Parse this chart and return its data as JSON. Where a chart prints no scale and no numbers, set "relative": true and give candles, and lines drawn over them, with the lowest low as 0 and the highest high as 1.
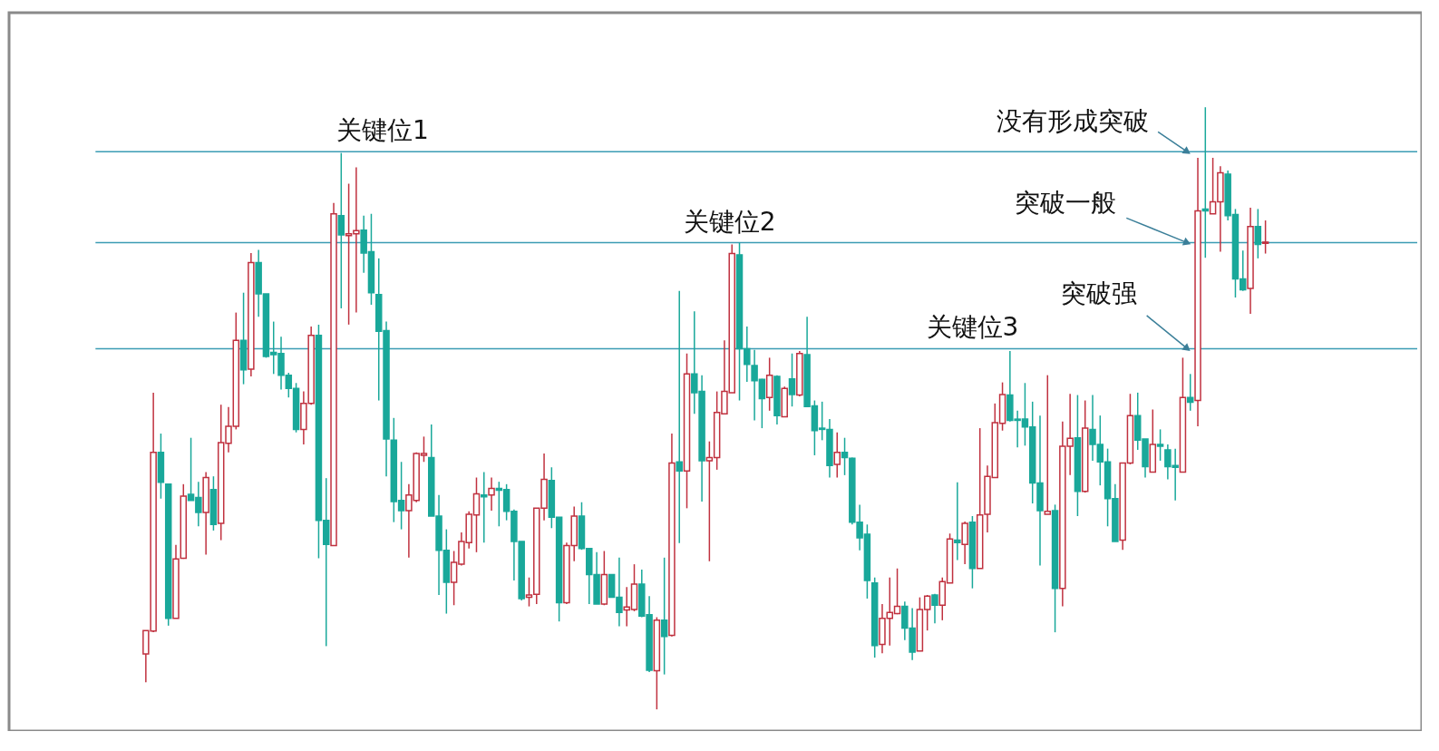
{
  "chart_data": {
    "type": "candlestick",
    "relative": true,
    "categories": [
      null,
      null,
      null,
      null,
      null,
      null,
      null,
      null,
      null,
      null,
      null,
      null,
      null,
      null,
      null,
      null,
      null,
      null,
      null,
      null,
      null,
      null,
      null,
      null,
      null,
      null,
      null,
      null,
      null,
      null,
      null,
      null,
      null,
      null,
      null,
      null,
      null,
      null,
      null,
      null,
      null,
      null,
      null,
      null,
      null,
      null,
      null,
      null,
      null,
      null,
      null,
      null,
      null,
      null,
      null,
      null,
      null,
      null,
      null,
      null,
      null,
      null,
      null,
      null,
      null,
      null,
      null,
      null,
      null,
      null,
      null,
      null,
      null,
      null,
      null,
      null,
      null,
      null,
      null,
      null,
      null,
      null,
      null,
      null,
      null,
      null,
      null,
      null,
      null,
      null,
      null,
      null,
      null,
      null,
      null,
      null,
      null,
      null,
      null,
      null,
      null,
      null,
      null,
      null,
      null,
      null,
      null,
      null,
      null,
      null,
      null,
      null,
      null,
      null,
      null,
      null,
      null,
      null,
      null,
      null,
      null,
      null,
      null,
      null,
      null,
      null,
      null,
      null,
      null,
      null,
      null,
      null,
      null,
      null,
      null,
      null,
      null,
      null,
      null,
      null,
      null,
      null,
      null,
      null,
      null,
      null,
      null,
      null,
      null,
      null
    ],
    "ohlc": [
      [
        0.092,
        0.131,
        0.045,
        0.131
      ],
      [
        0.13,
        0.526,
        0.128,
        0.427
      ],
      [
        0.427,
        0.458,
        0.35,
        0.377
      ],
      [
        0.374,
        0.374,
        0.139,
        0.151
      ],
      [
        0.151,
        0.273,
        0.151,
        0.25
      ],
      [
        0.251,
        0.374,
        0.25,
        0.354
      ],
      [
        0.357,
        0.451,
        0.347,
        0.347
      ],
      [
        0.352,
        0.378,
        0.304,
        0.327
      ],
      [
        0.327,
        0.394,
        0.257,
        0.385
      ],
      [
        0.365,
        0.387,
        0.297,
        0.307
      ],
      [
        0.309,
        0.506,
        0.281,
        0.443
      ],
      [
        0.442,
        0.502,
        0.427,
        0.47
      ],
      [
        0.47,
        0.659,
        0.465,
        0.613
      ],
      [
        0.613,
        0.692,
        0.54,
        0.564
      ],
      [
        0.565,
        0.758,
        0.553,
        0.742
      ],
      [
        0.742,
        0.763,
        0.652,
        0.69
      ],
      [
        0.69,
        0.69,
        0.584,
        0.586
      ],
      [
        0.593,
        0.644,
        0.557,
        0.589
      ],
      [
        0.591,
        0.619,
        0.531,
        0.555
      ],
      [
        0.555,
        0.559,
        0.518,
        0.533
      ],
      [
        0.533,
        0.542,
        0.46,
        0.465
      ],
      [
        0.465,
        0.528,
        0.44,
        0.508
      ],
      [
        0.508,
        0.636,
        0.506,
        0.621
      ],
      [
        0.621,
        0.639,
        0.251,
        0.314
      ],
      [
        0.314,
        0.384,
        0.105,
        0.274
      ],
      [
        0.272,
        0.841,
        0.272,
        0.823
      ],
      [
        0.82,
        0.924,
        0.666,
        0.788
      ],
      [
        0.787,
        0.873,
        0.639,
        0.79
      ],
      [
        0.79,
        0.9,
        0.659,
        0.795
      ],
      [
        0.796,
        0.82,
        0.725,
        0.758
      ],
      [
        0.76,
        0.823,
        0.672,
        0.692
      ],
      [
        0.689,
        0.749,
        0.513,
        0.628
      ],
      [
        0.629,
        0.644,
        0.387,
        0.449
      ],
      [
        0.447,
        0.484,
        0.311,
        0.345
      ],
      [
        0.347,
        0.411,
        0.299,
        0.33
      ],
      [
        0.33,
        0.374,
        0.252,
        0.356
      ],
      [
        0.347,
        0.427,
        0.344,
        0.425
      ],
      [
        0.422,
        0.453,
        0.411,
        0.425
      ],
      [
        0.418,
        0.473,
        0.321,
        0.321
      ],
      [
        0.321,
        0.356,
        0.19,
        0.264
      ],
      [
        0.264,
        0.299,
        0.159,
        0.211
      ],
      [
        0.211,
        0.263,
        0.173,
        0.244
      ],
      [
        0.241,
        0.294,
        0.239,
        0.279
      ],
      [
        0.277,
        0.329,
        0.267,
        0.324
      ],
      [
        0.323,
        0.385,
        0.261,
        0.358
      ],
      [
        0.356,
        0.394,
        0.277,
        0.353
      ],
      [
        0.356,
        0.385,
        0.33,
        0.367
      ],
      [
        0.367,
        0.378,
        0.304,
        0.364
      ],
      [
        0.365,
        0.374,
        0.314,
        0.329
      ],
      [
        0.329,
        0.332,
        0.214,
        0.279
      ],
      [
        0.279,
        0.279,
        0.181,
        0.184
      ],
      [
        0.186,
        0.219,
        0.171,
        0.19
      ],
      [
        0.191,
        0.334,
        0.175,
        0.334
      ],
      [
        0.334,
        0.425,
        0.314,
        0.382
      ],
      [
        0.38,
        0.402,
        0.301,
        0.319
      ],
      [
        0.319,
        0.319,
        0.146,
        0.177
      ],
      [
        0.177,
        0.277,
        0.175,
        0.272
      ],
      [
        0.272,
        0.337,
        0.246,
        0.321
      ],
      [
        0.321,
        0.344,
        0.265,
        0.267
      ],
      [
        0.267,
        0.267,
        0.175,
        0.224
      ],
      [
        0.224,
        0.261,
        0.175,
        0.175
      ],
      [
        0.175,
        0.263,
        0.173,
        0.224
      ],
      [
        0.224,
        0.224,
        0.186,
        0.186
      ],
      [
        0.186,
        0.252,
        0.138,
        0.161
      ],
      [
        0.165,
        0.203,
        0.138,
        0.17
      ],
      [
        0.166,
        0.241,
        0.163,
        0.208
      ],
      [
        0.208,
        0.232,
        0.153,
        0.155
      ],
      [
        0.157,
        0.188,
        0.062,
        0.065
      ],
      [
        0.064,
        0.153,
        0,
        0.148
      ],
      [
        0.148,
        0.252,
        0.058,
        0.121
      ],
      [
        0.123,
        0.458,
        0.121,
        0.409
      ],
      [
        0.411,
        0.695,
        0.276,
        0.396
      ],
      [
        0.396,
        0.591,
        0.334,
        0.557
      ],
      [
        0.557,
        0.661,
        0.491,
        0.526
      ],
      [
        0.528,
        0.555,
        0.345,
        0.413
      ],
      [
        0.413,
        0.445,
        0.246,
        0.418
      ],
      [
        0.418,
        0.528,
        0.398,
        0.493
      ],
      [
        0.491,
        0.613,
        0.49,
        0.528
      ],
      [
        0.526,
        0.772,
        0.526,
        0.757
      ],
      [
        0.755,
        0.775,
        0.513,
        0.599
      ],
      [
        0.599,
        0.636,
        0.544,
        0.573
      ],
      [
        0.571,
        0.597,
        0.48,
        0.546
      ],
      [
        0.548,
        0.549,
        0.467,
        0.516
      ],
      [
        0.518,
        0.584,
        0.496,
        0.555
      ],
      [
        0.553,
        0.555,
        0.473,
        0.488
      ],
      [
        0.486,
        0.536,
        0.486,
        0.533
      ],
      [
        0.549,
        0.591,
        0.503,
        0.523
      ],
      [
        0.522,
        0.595,
        0.52,
        0.591
      ],
      [
        0.589,
        0.652,
        0.502,
        0.503
      ],
      [
        0.504,
        0.513,
        0.422,
        0.463
      ],
      [
        0.467,
        0.511,
        0.447,
        0.465
      ],
      [
        0.465,
        0.482,
        0.385,
        0.405
      ],
      [
        0.407,
        0.46,
        0.385,
        0.427
      ],
      [
        0.427,
        0.451,
        0.389,
        0.418
      ],
      [
        0.417,
        0.418,
        0.307,
        0.311
      ],
      [
        0.311,
        0.34,
        0.264,
        0.285
      ],
      [
        0.291,
        0.307,
        0.184,
        0.214
      ],
      [
        0.21,
        0.219,
        0.086,
        0.106
      ],
      [
        0.108,
        0.175,
        0.093,
        0.151
      ],
      [
        0.151,
        0.219,
        0.106,
        0.161
      ],
      [
        0.159,
        0.234,
        0.158,
        0.171
      ],
      [
        0.171,
        0.179,
        0.115,
        0.135
      ],
      [
        0.135,
        0.168,
        0.082,
        0.095
      ],
      [
        0.097,
        0.186,
        0.097,
        0.166
      ],
      [
        0.166,
        0.19,
        0.131,
        0.188
      ],
      [
        0.19,
        0.192,
        0.143,
        0.173
      ],
      [
        0.173,
        0.219,
        0.148,
        0.212
      ],
      [
        0.21,
        0.292,
        0.21,
        0.283
      ],
      [
        0.281,
        0.377,
        0.248,
        0.277
      ],
      [
        0.274,
        0.312,
        0.241,
        0.309
      ],
      [
        0.311,
        0.321,
        0.201,
        0.234
      ],
      [
        0.234,
        0.467,
        0.234,
        0.323
      ],
      [
        0.324,
        0.405,
        0.294,
        0.387
      ],
      [
        0.385,
        0.508,
        0.385,
        0.476
      ],
      [
        0.475,
        0.543,
        0.463,
        0.523
      ],
      [
        0.522,
        0.595,
        0.478,
        0.48
      ],
      [
        0.482,
        0.496,
        0.435,
        0.48
      ],
      [
        0.482,
        0.542,
        0.438,
        0.469
      ],
      [
        0.469,
        0.511,
        0.342,
        0.376
      ],
      [
        0.376,
        0.488,
        0.239,
        0.33
      ],
      [
        0.324,
        0.555,
        0.324,
        0.329
      ],
      [
        0.33,
        0.34,
        0.128,
        0.201
      ],
      [
        0.201,
        0.478,
        0.171,
        0.437
      ],
      [
        0.437,
        0.524,
        0.389,
        0.45
      ],
      [
        0.451,
        0.522,
        0.321,
        0.362
      ],
      [
        0.362,
        0.513,
        0.36,
        0.467
      ],
      [
        0.465,
        0.522,
        0.413,
        0.44
      ],
      [
        0.44,
        0.488,
        0.372,
        0.411
      ],
      [
        0.411,
        0.433,
        0.304,
        0.35
      ],
      [
        0.35,
        0.374,
        0.279,
        0.279
      ],
      [
        0.281,
        0.409,
        0.265,
        0.409
      ],
      [
        0.409,
        0.524,
        0.407,
        0.488
      ],
      [
        0.488,
        0.526,
        0.431,
        0.447
      ],
      [
        0.449,
        0.449,
        0.385,
        0.403
      ],
      [
        0.394,
        0.498,
        0.394,
        0.44
      ],
      [
        0.44,
        0.465,
        0.413,
        0.437
      ],
      [
        0.431,
        0.44,
        0.382,
        0.403
      ],
      [
        0.405,
        0.433,
        0.347,
        0.402
      ],
      [
        0.394,
        0.584,
        0.394,
        0.518
      ],
      [
        0.518,
        0.557,
        0.496,
        0.51
      ],
      [
        0.513,
        0.916,
        0.47,
        0.828
      ],
      [
        0.831,
        1,
        0.75,
        0.828
      ],
      [
        0.823,
        0.916,
        0.823,
        0.843
      ],
      [
        0.843,
        0.902,
        0.76,
        0.891
      ],
      [
        0.889,
        0.895,
        0.812,
        0.82
      ],
      [
        0.822,
        0.831,
        0.684,
        0.715
      ],
      [
        0.715,
        0.762,
        0.695,
        0.697
      ],
      [
        0.699,
        0.833,
        0.657,
        0.802
      ],
      [
        0.802,
        0.831,
        0.749,
        0.772
      ],
      [
        0.774,
        0.812,
        0.757,
        0.776
      ]
    ],
    "colors": [
      "#c0313f",
      "#c0313f",
      "#19a89a",
      "#19a89a",
      "#c0313f",
      "#c0313f",
      "#19a89a",
      "#19a89a",
      "#c0313f",
      "#19a89a",
      "#c0313f",
      "#c0313f",
      "#c0313f",
      "#19a89a",
      "#c0313f",
      "#19a89a",
      "#19a89a",
      "#19a89a",
      "#19a89a",
      "#19a89a",
      "#19a89a",
      "#c0313f",
      "#c0313f",
      "#19a89a",
      "#19a89a",
      "#c0313f",
      "#19a89a",
      "#c0313f",
      "#c0313f",
      "#19a89a",
      "#19a89a",
      "#19a89a",
      "#19a89a",
      "#19a89a",
      "#19a89a",
      "#c0313f",
      "#c0313f",
      "#c0313f",
      "#19a89a",
      "#19a89a",
      "#19a89a",
      "#c0313f",
      "#c0313f",
      "#c0313f",
      "#c0313f",
      "#19a89a",
      "#c0313f",
      "#19a89a",
      "#19a89a",
      "#19a89a",
      "#19a89a",
      "#c0313f",
      "#c0313f",
      "#c0313f",
      "#19a89a",
      "#19a89a",
      "#c0313f",
      "#c0313f",
      "#19a89a",
      "#19a89a",
      "#19a89a",
      "#c0313f",
      "#19a89a",
      "#19a89a",
      "#c0313f",
      "#c0313f",
      "#19a89a",
      "#19a89a",
      "#c0313f",
      "#19a89a",
      "#c0313f",
      "#19a89a",
      "#c0313f",
      "#19a89a",
      "#19a89a",
      "#c0313f",
      "#c0313f",
      "#c0313f",
      "#c0313f",
      "#19a89a",
      "#19a89a",
      "#19a89a",
      "#19a89a",
      "#c0313f",
      "#19a89a",
      "#c0313f",
      "#19a89a",
      "#c0313f",
      "#19a89a",
      "#19a89a",
      "#19a89a",
      "#19a89a",
      "#c0313f",
      "#19a89a",
      "#19a89a",
      "#19a89a",
      "#19a89a",
      "#19a89a",
      "#c0313f",
      "#c0313f",
      "#c0313f",
      "#19a89a",
      "#19a89a",
      "#c0313f",
      "#c0313f",
      "#19a89a",
      "#c0313f",
      "#c0313f",
      "#19a89a",
      "#c0313f",
      "#19a89a",
      "#c0313f",
      "#c0313f",
      "#c0313f",
      "#c0313f",
      "#19a89a",
      "#19a89a",
      "#19a89a",
      "#19a89a",
      "#19a89a",
      "#c0313f",
      "#19a89a",
      "#c0313f",
      "#c0313f",
      "#19a89a",
      "#c0313f",
      "#19a89a",
      "#19a89a",
      "#19a89a",
      "#19a89a",
      "#c0313f",
      "#c0313f",
      "#19a89a",
      "#19a89a",
      "#c0313f",
      "#19a89a",
      "#19a89a",
      "#19a89a",
      "#c0313f",
      "#19a89a",
      "#c0313f",
      "#19a89a",
      "#c0313f",
      "#c0313f",
      "#19a89a",
      "#19a89a",
      "#19a89a",
      "#c0313f",
      "#19a89a",
      "#c0313f"
    ],
    "ref_lines": [
      {
        "axis": "y",
        "value": 0.926,
        "label": "关键位1",
        "color": "#3b9cb4"
      },
      {
        "axis": "y",
        "value": 0.775,
        "label": "关键位2",
        "color": "#3b9cb4"
      },
      {
        "axis": "y",
        "value": 0.599,
        "label": "关键位3",
        "color": "#3b9cb4"
      }
    ],
    "annotations": [
      {
        "text": "没有形成突破",
        "y": 0.926
      },
      {
        "text": "突破一般",
        "y": 0.775
      },
      {
        "text": "突破强",
        "y": 0.599
      }
    ]
  }
}
